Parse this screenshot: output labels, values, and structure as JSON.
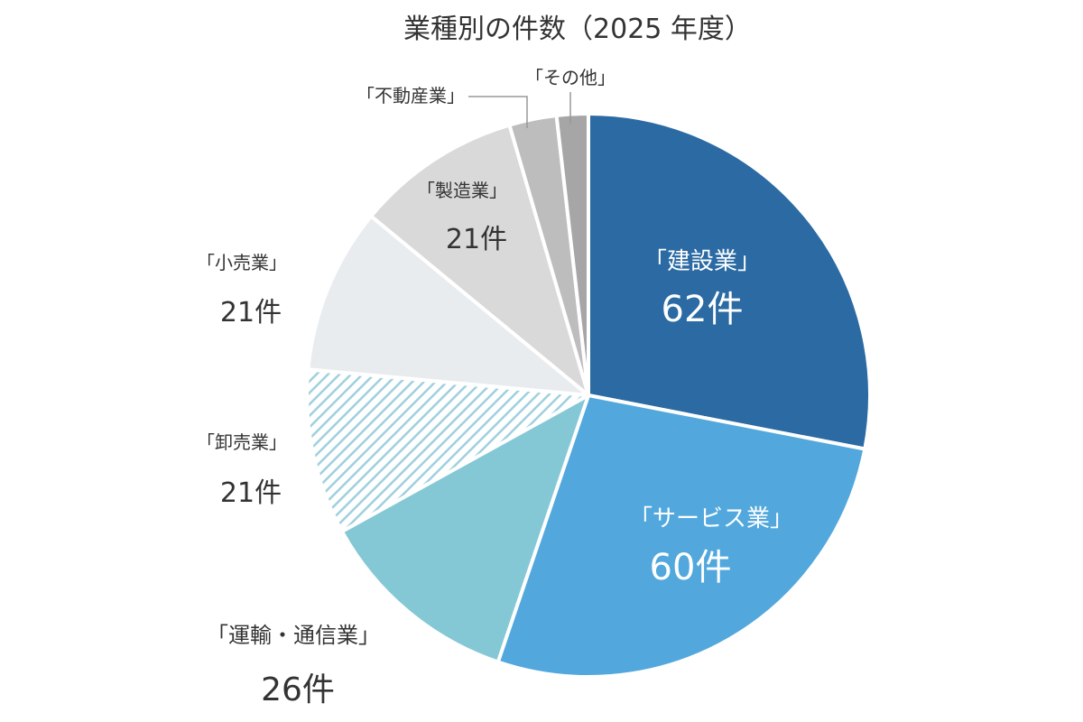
{
  "chart_data": {
    "type": "pie",
    "title": "業種別の件数（2025 年度）",
    "unit": "件",
    "slices": [
      {
        "label": "「建設業」",
        "value": 62,
        "value_label": "62件",
        "color": "#2b6aa3"
      },
      {
        "label": "「サービス業」",
        "value": 60,
        "value_label": "60件",
        "color": "#52a8dc"
      },
      {
        "label": "「運輸・通信業」",
        "value": 26,
        "value_label": "26件",
        "color": "#84c8d6"
      },
      {
        "label": "「卸売業」",
        "value": 21,
        "value_label": "21件",
        "color": "#b8dde7",
        "hatched": true
      },
      {
        "label": "「小売業」",
        "value": 21,
        "value_label": "21件",
        "color": "#e9ecef"
      },
      {
        "label": "「製造業」",
        "value": 21,
        "value_label": "21件",
        "color": "#d9d9d9"
      },
      {
        "label": "「不動産業」",
        "value": 6,
        "value_label": "",
        "color": "#bdbdbd"
      },
      {
        "label": "「その他」",
        "value": 4,
        "value_label": "",
        "color": "#a6a6a6"
      }
    ],
    "start": "12 o'clock",
    "direction": "clockwise",
    "legend": "none"
  }
}
